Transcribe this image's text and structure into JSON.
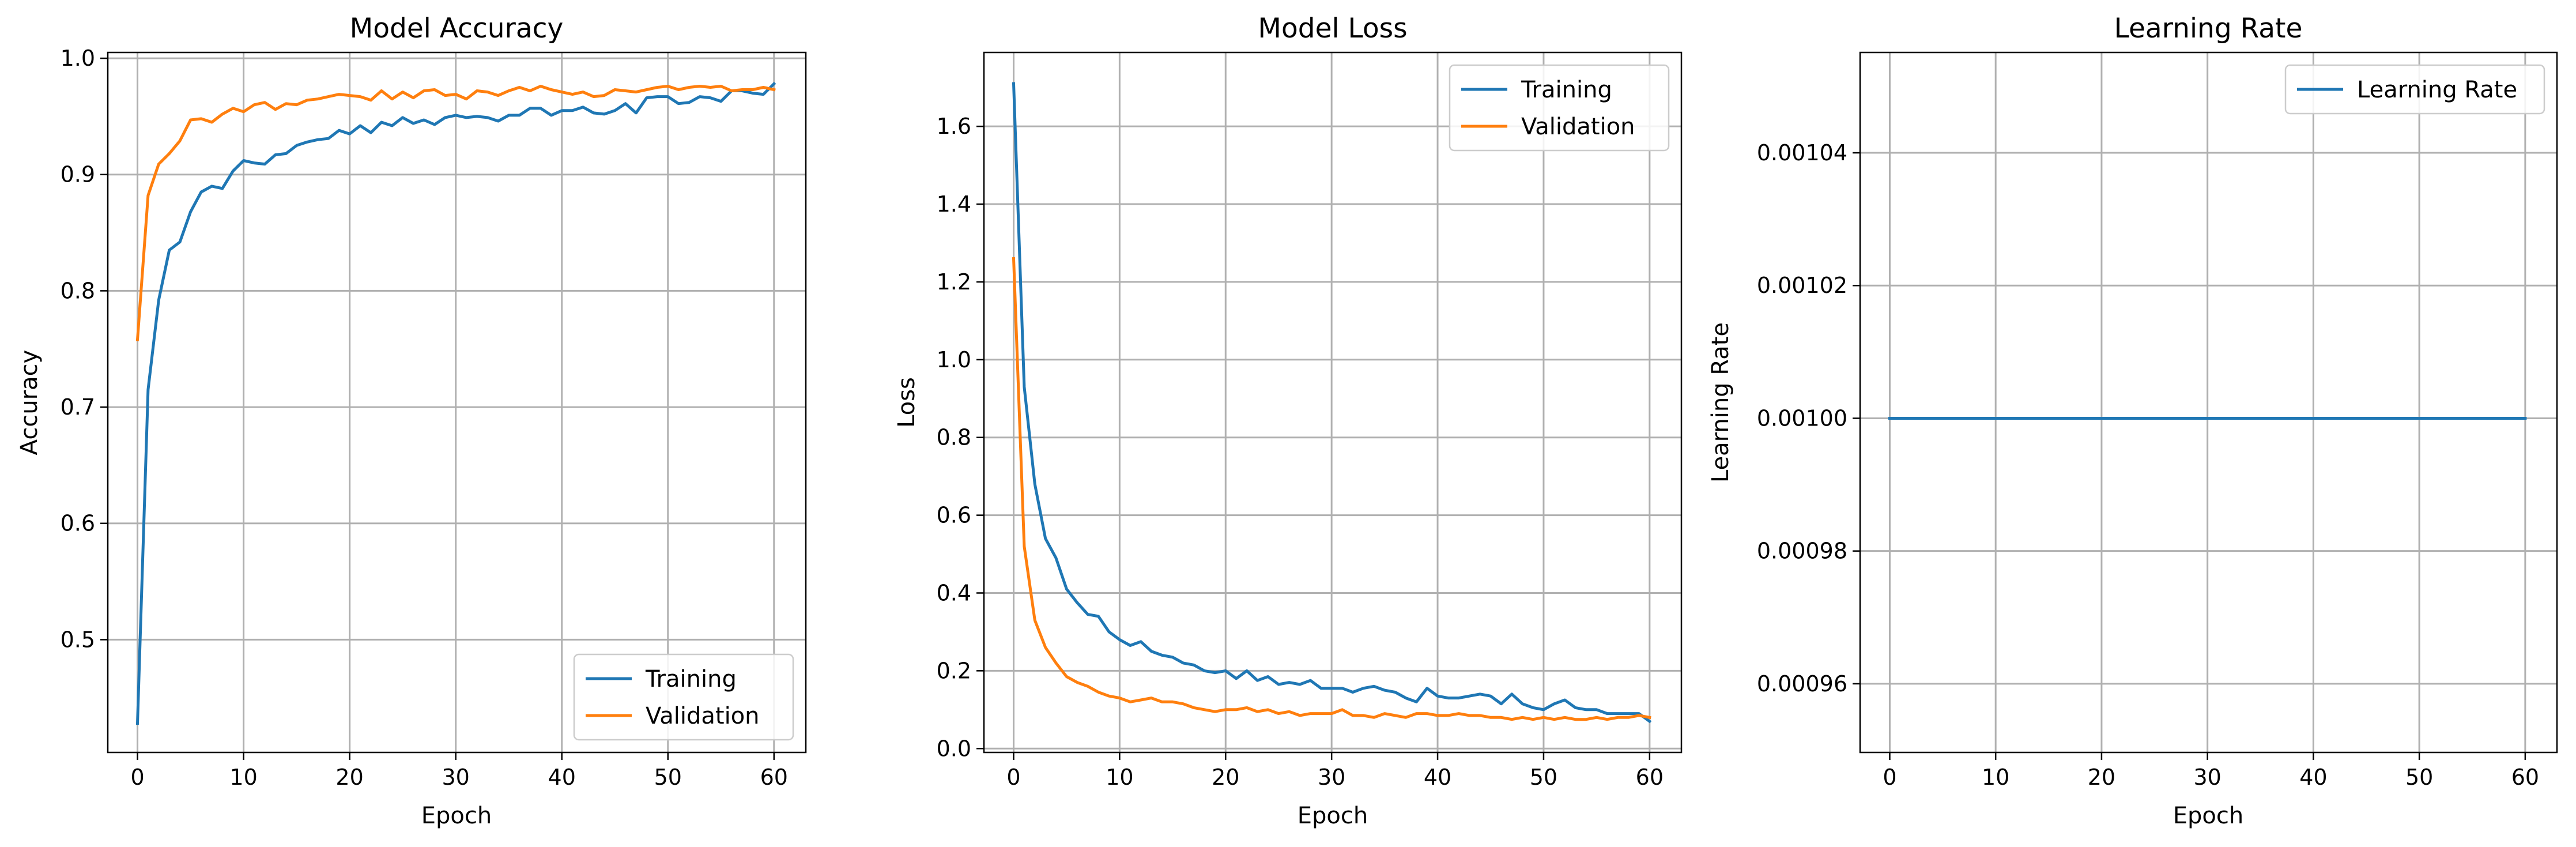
{
  "figure": {
    "background": "#ffffff",
    "grid_color": "#b0b0b0"
  },
  "chart_data": [
    {
      "type": "line",
      "title": "Model Accuracy",
      "xlabel": "Epoch",
      "ylabel": "Accuracy",
      "xlim": [
        -2.8,
        63
      ],
      "ylim": [
        0.403,
        1.005
      ],
      "xticks": [
        0,
        10,
        20,
        30,
        40,
        50,
        60
      ],
      "yticks": [
        0.5,
        0.6,
        0.7,
        0.8,
        0.9,
        1.0
      ],
      "ytick_labels": [
        "0.5",
        "0.6",
        "0.7",
        "0.8",
        "0.9",
        "1.0"
      ],
      "grid": true,
      "legend_position": "lower-right",
      "series": [
        {
          "name": "Training",
          "color": "#1f77b4",
          "values": [
            0.428,
            0.715,
            0.792,
            0.835,
            0.842,
            0.868,
            0.885,
            0.89,
            0.888,
            0.903,
            0.912,
            0.91,
            0.909,
            0.917,
            0.918,
            0.925,
            0.928,
            0.93,
            0.931,
            0.938,
            0.935,
            0.942,
            0.936,
            0.945,
            0.942,
            0.949,
            0.944,
            0.947,
            0.943,
            0.949,
            0.951,
            0.949,
            0.95,
            0.949,
            0.946,
            0.951,
            0.951,
            0.957,
            0.957,
            0.951,
            0.955,
            0.955,
            0.958,
            0.953,
            0.952,
            0.955,
            0.961,
            0.953,
            0.966,
            0.967,
            0.967,
            0.961,
            0.962,
            0.967,
            0.966,
            0.963,
            0.972,
            0.972,
            0.97,
            0.969,
            0.978
          ]
        },
        {
          "name": "Validation",
          "color": "#ff7f0e",
          "values": [
            0.758,
            0.882,
            0.909,
            0.918,
            0.929,
            0.947,
            0.948,
            0.945,
            0.952,
            0.957,
            0.954,
            0.96,
            0.962,
            0.956,
            0.961,
            0.96,
            0.964,
            0.965,
            0.967,
            0.969,
            0.968,
            0.967,
            0.964,
            0.972,
            0.965,
            0.971,
            0.966,
            0.972,
            0.973,
            0.968,
            0.969,
            0.965,
            0.972,
            0.971,
            0.968,
            0.972,
            0.975,
            0.972,
            0.976,
            0.973,
            0.971,
            0.969,
            0.971,
            0.967,
            0.968,
            0.973,
            0.972,
            0.971,
            0.973,
            0.975,
            0.976,
            0.973,
            0.975,
            0.976,
            0.975,
            0.976,
            0.972,
            0.973,
            0.973,
            0.975,
            0.973
          ]
        }
      ]
    },
    {
      "type": "line",
      "title": "Model Loss",
      "xlabel": "Epoch",
      "ylabel": "Loss",
      "xlim": [
        -2.8,
        63
      ],
      "ylim": [
        -0.01,
        1.79
      ],
      "xticks": [
        0,
        10,
        20,
        30,
        40,
        50,
        60
      ],
      "yticks": [
        0.0,
        0.2,
        0.4,
        0.6,
        0.8,
        1.0,
        1.2,
        1.4,
        1.6
      ],
      "ytick_labels": [
        "0.0",
        "0.2",
        "0.4",
        "0.6",
        "0.8",
        "1.0",
        "1.2",
        "1.4",
        "1.6"
      ],
      "grid": true,
      "legend_position": "top-right",
      "series": [
        {
          "name": "Training",
          "color": "#1f77b4",
          "values": [
            1.71,
            0.93,
            0.68,
            0.54,
            0.49,
            0.41,
            0.375,
            0.345,
            0.34,
            0.3,
            0.28,
            0.265,
            0.275,
            0.25,
            0.24,
            0.235,
            0.22,
            0.215,
            0.2,
            0.195,
            0.2,
            0.18,
            0.2,
            0.175,
            0.185,
            0.165,
            0.17,
            0.165,
            0.175,
            0.155,
            0.155,
            0.155,
            0.145,
            0.155,
            0.16,
            0.15,
            0.145,
            0.13,
            0.12,
            0.155,
            0.135,
            0.13,
            0.13,
            0.135,
            0.14,
            0.135,
            0.115,
            0.14,
            0.115,
            0.105,
            0.1,
            0.115,
            0.125,
            0.105,
            0.1,
            0.1,
            0.09,
            0.09,
            0.09,
            0.09,
            0.07
          ]
        },
        {
          "name": "Validation",
          "color": "#ff7f0e",
          "values": [
            1.26,
            0.52,
            0.33,
            0.26,
            0.22,
            0.185,
            0.17,
            0.16,
            0.145,
            0.135,
            0.13,
            0.12,
            0.125,
            0.13,
            0.12,
            0.12,
            0.115,
            0.105,
            0.1,
            0.095,
            0.1,
            0.1,
            0.105,
            0.095,
            0.1,
            0.09,
            0.095,
            0.085,
            0.09,
            0.09,
            0.09,
            0.1,
            0.085,
            0.085,
            0.08,
            0.09,
            0.085,
            0.08,
            0.09,
            0.09,
            0.085,
            0.085,
            0.09,
            0.085,
            0.085,
            0.08,
            0.08,
            0.075,
            0.08,
            0.075,
            0.08,
            0.075,
            0.08,
            0.075,
            0.075,
            0.08,
            0.075,
            0.08,
            0.08,
            0.085,
            0.08
          ]
        }
      ]
    },
    {
      "type": "line",
      "title": "Learning Rate",
      "xlabel": "Epoch",
      "ylabel": "Learning Rate",
      "xlim": [
        -2.8,
        63
      ],
      "ylim": [
        0.00094965,
        0.00105512
      ],
      "xticks": [
        0,
        10,
        20,
        30,
        40,
        50,
        60
      ],
      "yticks": [
        0.00096,
        0.00098,
        0.001,
        0.00102,
        0.00104
      ],
      "ytick_labels": [
        "0.00096",
        "0.00098",
        "0.00100",
        "0.00102",
        "0.00104"
      ],
      "grid": true,
      "legend_position": "top-right",
      "series": [
        {
          "name": "Learning Rate",
          "color": "#1f77b4",
          "x": [
            0,
            60
          ],
          "values": [
            0.001,
            0.001
          ]
        }
      ]
    }
  ]
}
